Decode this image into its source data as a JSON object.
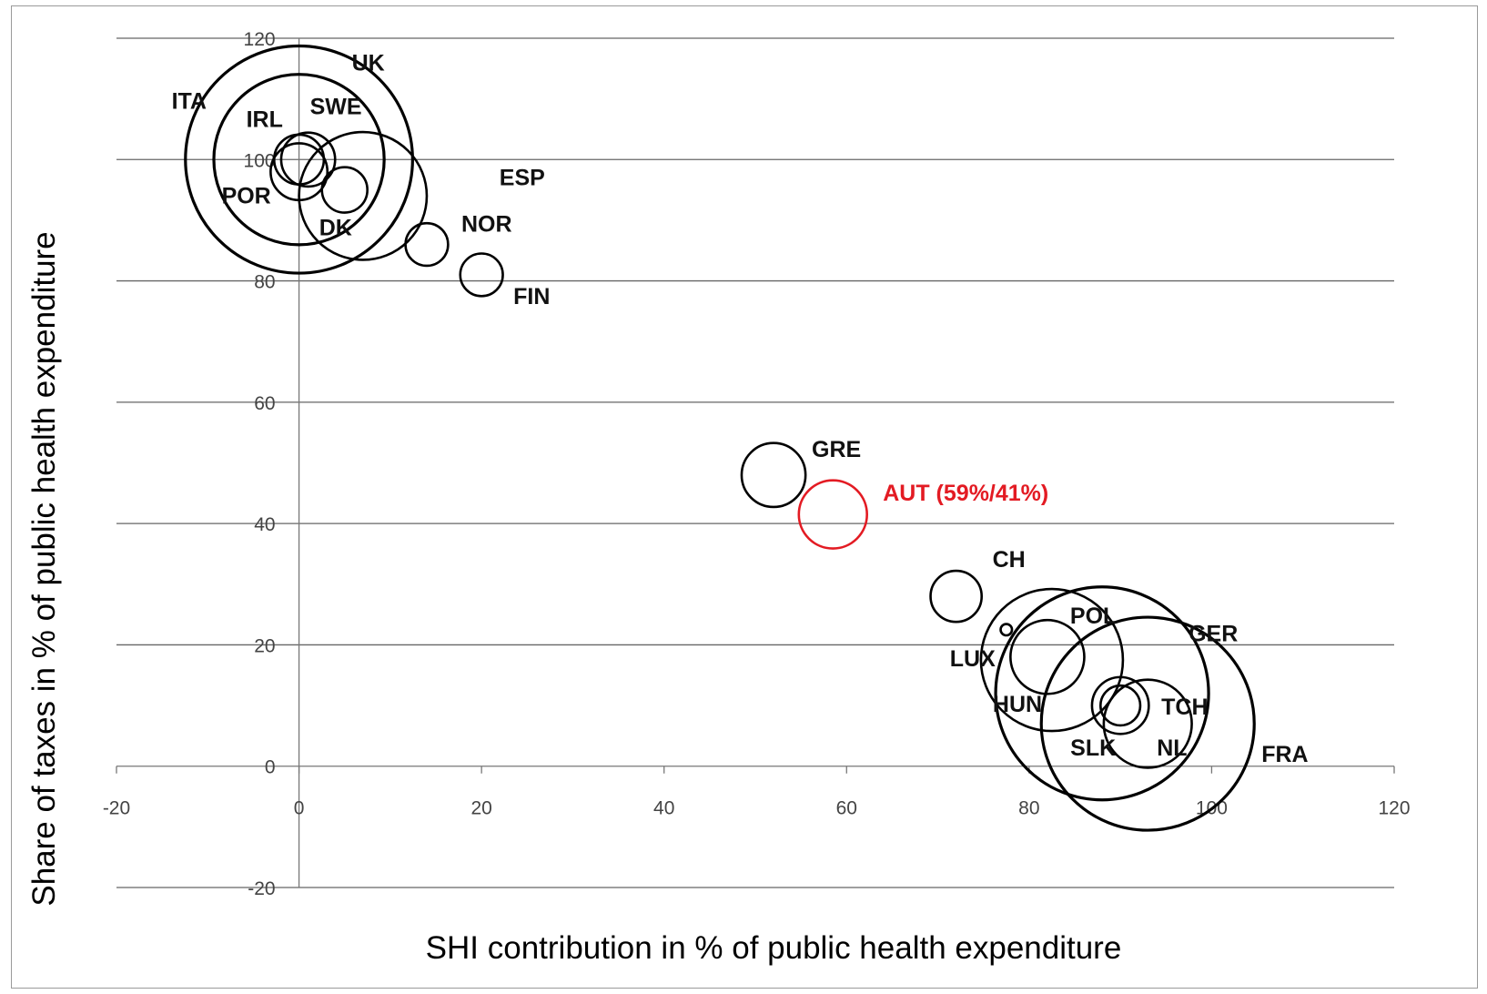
{
  "chart_data": {
    "type": "scatter",
    "subtype": "bubble",
    "title": "",
    "xlabel": "SHI contribution in % of public health expenditure",
    "ylabel": "Share of taxes in % of public health expenditure",
    "xlim": [
      -20,
      120
    ],
    "ylim": [
      -20,
      120
    ],
    "x_ticks": [
      -20,
      0,
      20,
      40,
      60,
      80,
      100,
      120
    ],
    "y_ticks": [
      -20,
      0,
      20,
      40,
      60,
      80,
      100,
      120
    ],
    "x_tick_labels": [
      "-20",
      "0",
      "20",
      "40",
      "60",
      "80",
      "100",
      "120"
    ],
    "y_tick_labels": [
      "-20",
      "0",
      "20",
      "40",
      "60",
      "80",
      "100",
      "120"
    ],
    "grid": "horizontal",
    "colors": {
      "default": "#000000",
      "highlight": "#e31b23",
      "grid": "#666666"
    },
    "points": [
      {
        "label": "UK",
        "x": 0,
        "y": 100,
        "size": 16
      },
      {
        "label": "ITA",
        "x": 0,
        "y": 100,
        "size": 12
      },
      {
        "label": "ESP",
        "x": 7,
        "y": 94,
        "size": 9
      },
      {
        "label": "IRL",
        "x": 0,
        "y": 100,
        "size": 3.5
      },
      {
        "label": "SWE",
        "x": 1,
        "y": 100,
        "size": 3.8
      },
      {
        "label": "POR",
        "x": 0,
        "y": 98,
        "size": 4
      },
      {
        "label": "DK",
        "x": 5,
        "y": 95,
        "size": 3.2
      },
      {
        "label": "NOR",
        "x": 14,
        "y": 86,
        "size": 3
      },
      {
        "label": "FIN",
        "x": 20,
        "y": 81,
        "size": 3
      },
      {
        "label": "GRE",
        "x": 52,
        "y": 48,
        "size": 4.5
      },
      {
        "label": "AUT (59%/41%)",
        "x": 58.5,
        "y": 41.5,
        "size": 4.8,
        "highlight": true
      },
      {
        "label": "CH",
        "x": 72,
        "y": 28,
        "size": 3.6
      },
      {
        "label": "LUX",
        "x": 77.5,
        "y": 22.5,
        "size": 0.8
      },
      {
        "label": "POL",
        "x": 82.5,
        "y": 17.5,
        "size": 10
      },
      {
        "label": "GER",
        "x": 88,
        "y": 12,
        "size": 15
      },
      {
        "label": "HUN",
        "x": 82,
        "y": 18,
        "size": 5.2
      },
      {
        "label": "TCH",
        "x": 90,
        "y": 10,
        "size": 4
      },
      {
        "label": "SLK",
        "x": 90,
        "y": 10,
        "size": 2.8
      },
      {
        "label": "NL",
        "x": 93,
        "y": 7,
        "size": 6.2
      },
      {
        "label": "FRA",
        "x": 93,
        "y": 7,
        "size": 15
      }
    ]
  }
}
